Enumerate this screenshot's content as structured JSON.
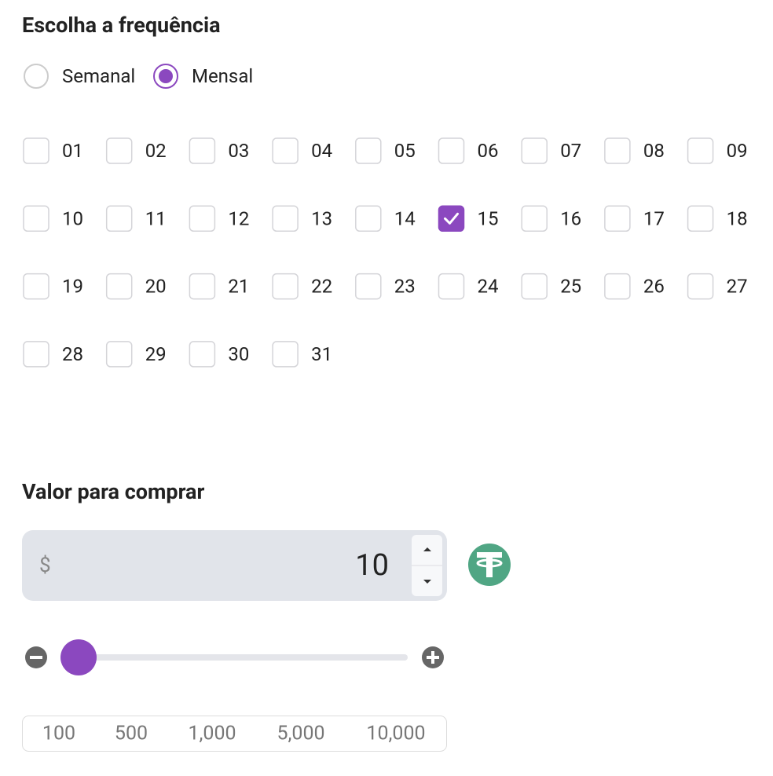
{
  "frequency": {
    "title": "Escolha a frequência",
    "options": [
      {
        "label": "Semanal",
        "selected": false
      },
      {
        "label": "Mensal",
        "selected": true
      }
    ],
    "days": [
      {
        "label": "01",
        "checked": false
      },
      {
        "label": "02",
        "checked": false
      },
      {
        "label": "03",
        "checked": false
      },
      {
        "label": "04",
        "checked": false
      },
      {
        "label": "05",
        "checked": false
      },
      {
        "label": "06",
        "checked": false
      },
      {
        "label": "07",
        "checked": false
      },
      {
        "label": "08",
        "checked": false
      },
      {
        "label": "09",
        "checked": false
      },
      {
        "label": "10",
        "checked": false
      },
      {
        "label": "11",
        "checked": false
      },
      {
        "label": "12",
        "checked": false
      },
      {
        "label": "13",
        "checked": false
      },
      {
        "label": "14",
        "checked": false
      },
      {
        "label": "15",
        "checked": true
      },
      {
        "label": "16",
        "checked": false
      },
      {
        "label": "17",
        "checked": false
      },
      {
        "label": "18",
        "checked": false
      },
      {
        "label": "19",
        "checked": false
      },
      {
        "label": "20",
        "checked": false
      },
      {
        "label": "21",
        "checked": false
      },
      {
        "label": "22",
        "checked": false
      },
      {
        "label": "23",
        "checked": false
      },
      {
        "label": "24",
        "checked": false
      },
      {
        "label": "25",
        "checked": false
      },
      {
        "label": "26",
        "checked": false
      },
      {
        "label": "27",
        "checked": false
      },
      {
        "label": "28",
        "checked": false
      },
      {
        "label": "29",
        "checked": false
      },
      {
        "label": "30",
        "checked": false
      },
      {
        "label": "31",
        "checked": false
      }
    ]
  },
  "amount": {
    "title": "Valor para comprar",
    "currency": "$",
    "value": 10,
    "presets": [
      "100",
      "500",
      "1,000",
      "5,000",
      "10,000"
    ]
  }
}
